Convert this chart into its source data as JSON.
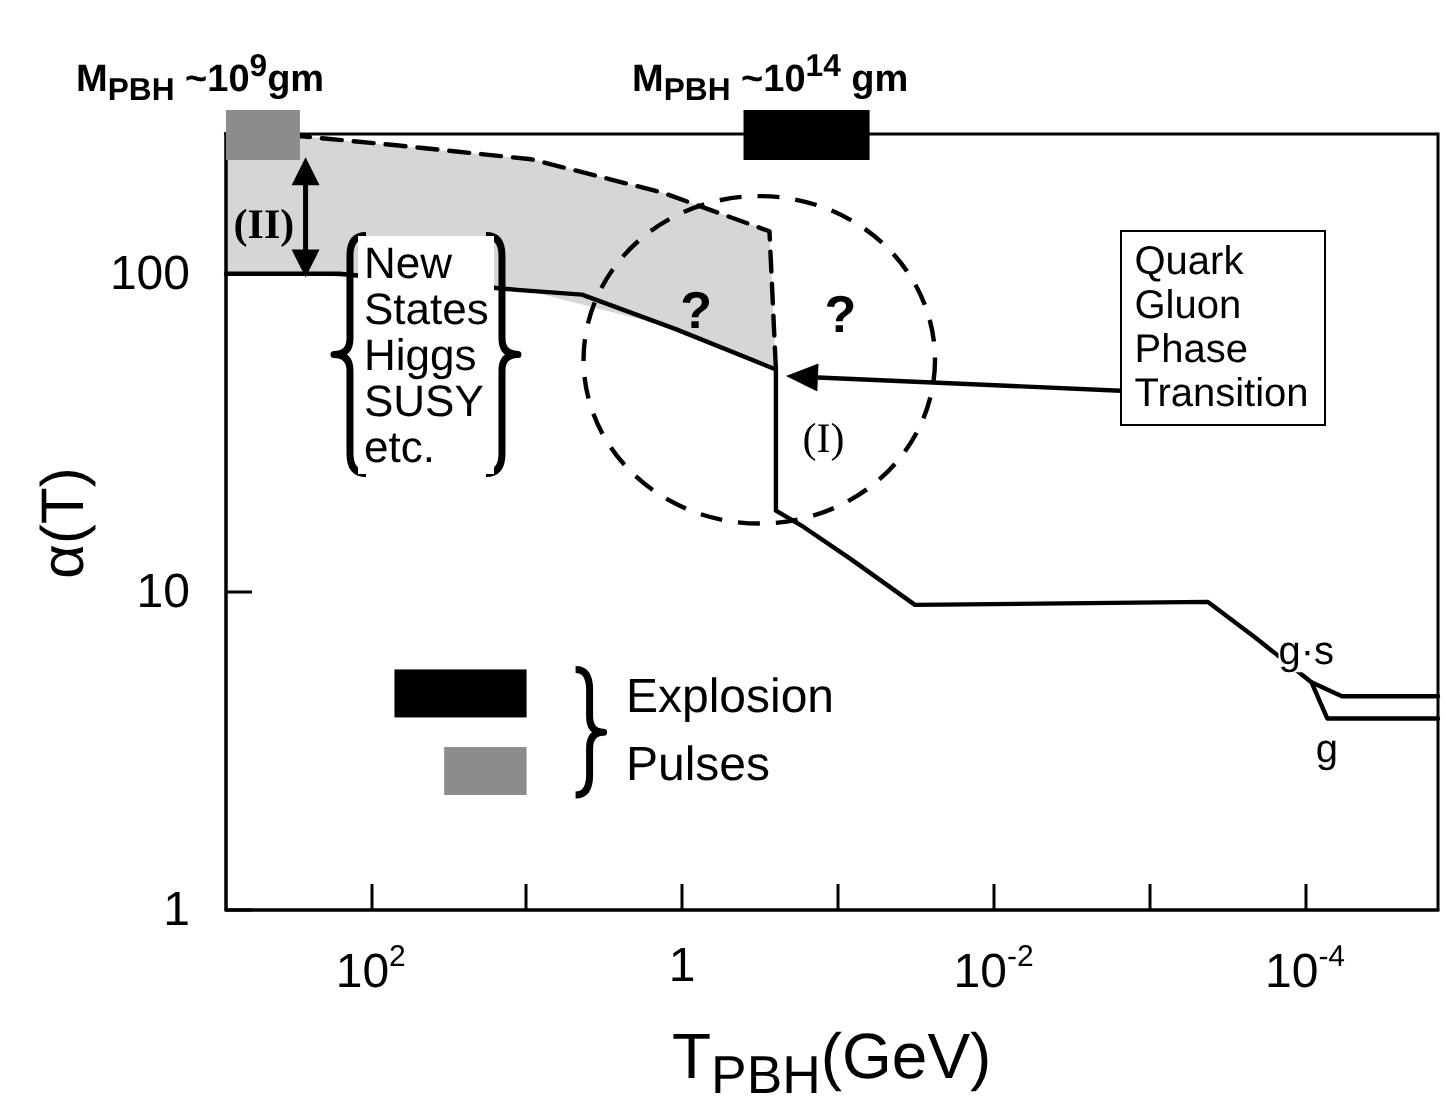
{
  "chart_data": {
    "type": "line",
    "xlabel": "T$_{PBH}$(GeV)",
    "ylabel": "α(T)",
    "log": "xy",
    "xlim": [
      850,
      1.4e-05
    ],
    "xticks": [
      {
        "value": 100,
        "label": "10$^{2}$"
      },
      {
        "value": 10,
        "label": null
      },
      1,
      {
        "value": 0.1,
        "label": null
      },
      {
        "value": 0.01,
        "label": "10$^{-2}$"
      },
      {
        "value": 0.001,
        "label": null
      },
      {
        "value": 0.0001,
        "label": "10$^{-4}$"
      }
    ],
    "ylim": [
      1,
      275
    ],
    "yticks": [
      1,
      10,
      100
    ],
    "series": [
      {
        "name": "g",
        "color": "#000000",
        "line_style": "solid",
        "x": [
          850,
          160,
          11.5,
          4.4,
          1.1,
          0.25,
          0.25,
          0.166,
          0.083,
          0.032,
          0.00042,
          0.00021,
          9.1e-05,
          7.2e-05,
          1.4e-05
        ],
        "values": [
          100,
          100,
          89,
          86,
          67,
          50,
          18,
          16,
          12.7,
          9.1,
          9.3,
          7.2,
          5.2,
          4.0,
          4.0
        ]
      },
      {
        "name": "g·s",
        "color": "#000000",
        "line_style": "solid",
        "x": [
          9.1e-05,
          5.8e-05,
          1.4e-05
        ],
        "values": [
          5.2,
          4.7,
          4.7
        ]
      },
      {
        "color": "#000000",
        "line_style": "dashed",
        "x": [
          850,
          290,
          66,
          9.3,
          1.34,
          0.275,
          0.25
        ],
        "values": [
          275,
          271,
          253,
          229,
          180,
          136,
          50
        ],
        "lower": [
          100,
          100,
          null,
          88,
          69,
          52,
          50
        ],
        "upper": [
          275,
          271,
          null,
          229,
          180,
          136,
          50
        ]
      }
    ],
    "annotations": [
      "(II)",
      "New\nStates\nHiggs\nSUSY\netc.",
      "?",
      "?",
      "(I)",
      "Quark\nGluon\nPhase\nTransition",
      "Explosion",
      "Pulses",
      "M$_{PBH}$ ~10$^{9}$gm",
      "M$_{PBH}$ ~10$^{14}$ gm"
    ]
  }
}
